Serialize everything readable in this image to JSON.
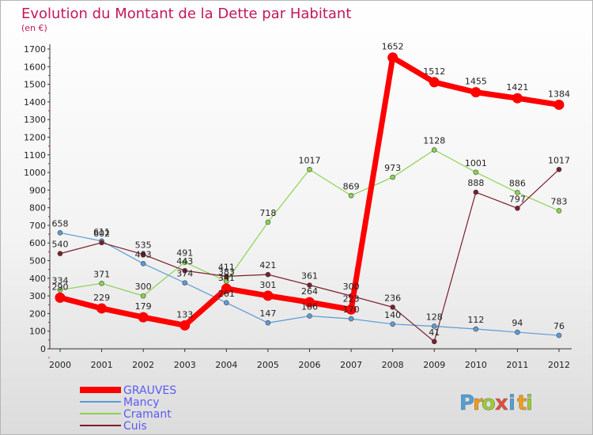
{
  "chart_data": {
    "type": "line",
    "title": "Evolution du Montant de la Dette par Habitant",
    "subtitle": "(en €)",
    "categories": [
      "2000",
      "2001",
      "2002",
      "2003",
      "2004",
      "2005",
      "2006",
      "2007",
      "2008",
      "2009",
      "2010",
      "2011",
      "2012"
    ],
    "ylim": [
      0,
      1700
    ],
    "yticks": [
      0,
      100,
      200,
      300,
      400,
      500,
      600,
      700,
      800,
      900,
      1000,
      1100,
      1200,
      1300,
      1400,
      1500,
      1600,
      1700
    ],
    "grid": false,
    "legend_position": "bottom-left",
    "series": [
      {
        "name": "GRAUVES",
        "color": "#ff0000",
        "values": [
          290,
          229,
          179,
          133,
          341,
          301,
          264,
          223,
          1652,
          1512,
          1455,
          1421,
          1384
        ]
      },
      {
        "name": "Mancy",
        "color": "#5b9bd5",
        "values": [
          658,
          611,
          483,
          374,
          261,
          147,
          186,
          170,
          140,
          128,
          112,
          94,
          76
        ]
      },
      {
        "name": "Cramant",
        "color": "#8bd34f",
        "values": [
          334,
          371,
          300,
          491,
          383,
          718,
          1017,
          869,
          973,
          1128,
          1001,
          886,
          783
        ]
      },
      {
        "name": "Cuis",
        "color": "#7a1f2b",
        "values": [
          540,
          602,
          535,
          443,
          411,
          421,
          361,
          300,
          236,
          41,
          888,
          797,
          1017
        ]
      }
    ]
  },
  "logo": {
    "text": "Proxiti",
    "letters": [
      "P",
      "r",
      "o",
      "x",
      "i",
      "t",
      "i"
    ],
    "colors": [
      "#4f9fd8",
      "#f39c12",
      "#9acd32",
      "#e74c3c",
      "#4f9fd8",
      "#f39c12",
      "#9acd32"
    ]
  }
}
